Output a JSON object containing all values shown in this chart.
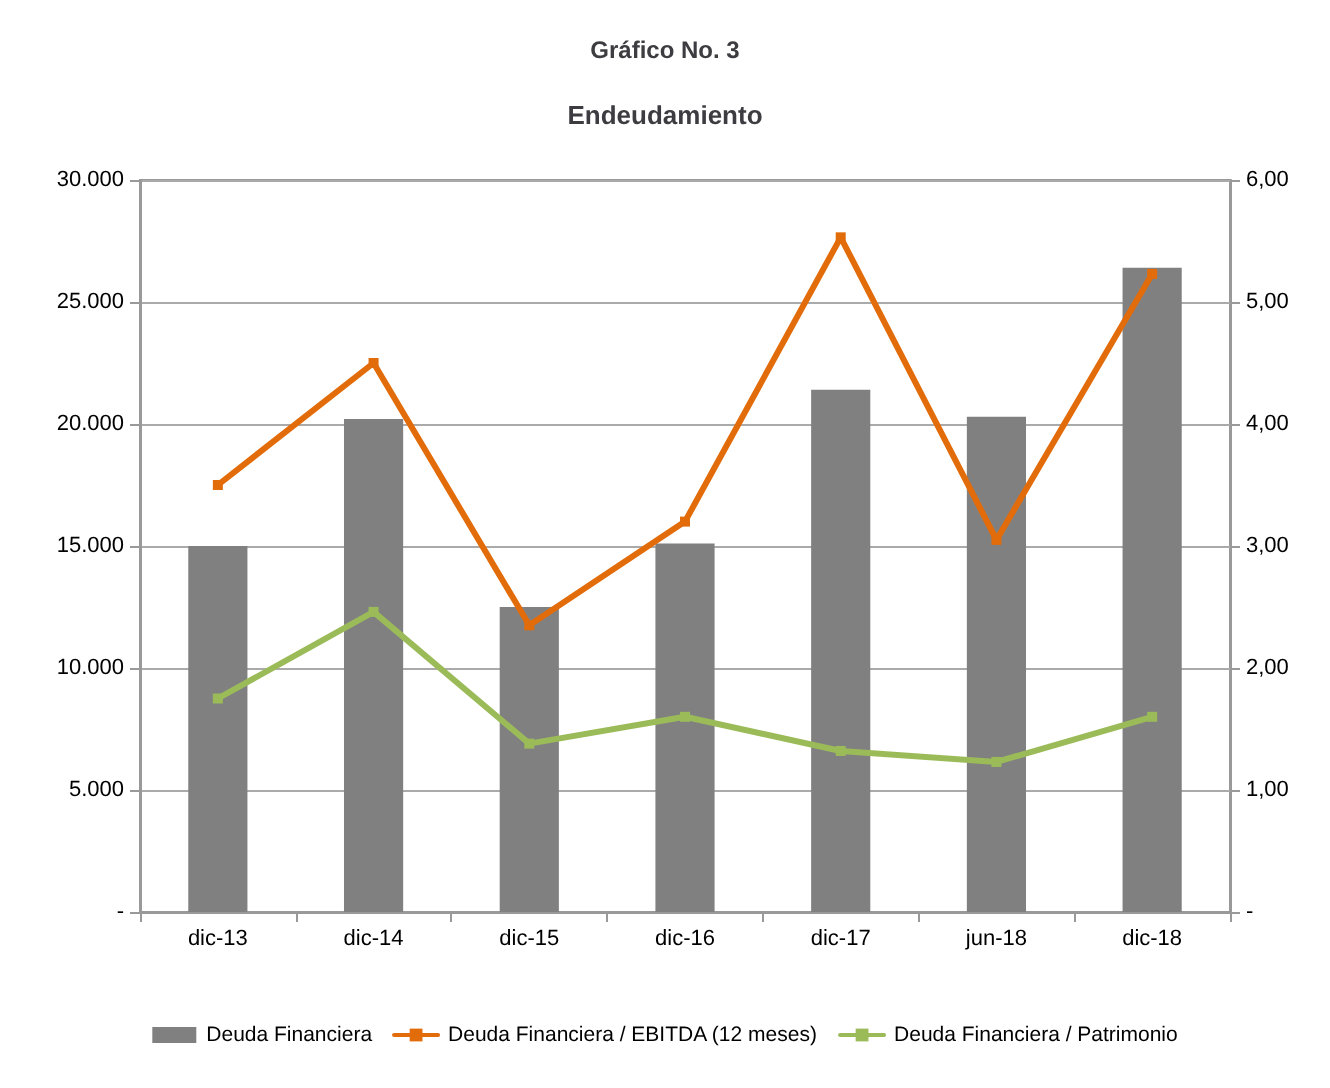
{
  "chart_data": {
    "type": "bar",
    "title": "Gráfico No. 3",
    "subtitle": "Endeudamiento",
    "categories": [
      "dic-13",
      "dic-14",
      "dic-15",
      "dic-16",
      "dic-17",
      "jun-18",
      "dic-18"
    ],
    "series": [
      {
        "name": "Deuda Financiera",
        "color": "#808080",
        "values": [
          15000,
          20200,
          12500,
          15100,
          21400,
          20300,
          26400
        ]
      },
      {
        "name": "Deuda Financiera / EBITDA (12 meses)",
        "type": "line",
        "axis": "y2",
        "color": "#e36c0a",
        "values": [
          3.5,
          4.5,
          2.35,
          3.2,
          5.53,
          3.05,
          5.23
        ]
      },
      {
        "name": "Deuda Financiera / Patrimonio",
        "type": "line",
        "axis": "y2",
        "color": "#9bbb59",
        "values": [
          1.75,
          2.46,
          1.38,
          1.6,
          1.32,
          1.23,
          1.6
        ]
      }
    ],
    "ylim": [
      0,
      30000
    ],
    "yticks": [
      {
        "value": 0,
        "label": "-"
      },
      {
        "value": 5000,
        "label": "5.000"
      },
      {
        "value": 10000,
        "label": "10.000"
      },
      {
        "value": 15000,
        "label": "15.000"
      },
      {
        "value": 20000,
        "label": "20.000"
      },
      {
        "value": 25000,
        "label": "25.000"
      },
      {
        "value": 30000,
        "label": "30.000"
      }
    ],
    "y2lim": [
      0,
      6
    ],
    "y2ticks": [
      {
        "value": 0,
        "label": "-"
      },
      {
        "value": 1,
        "label": "1,00"
      },
      {
        "value": 2,
        "label": "2,00"
      },
      {
        "value": 3,
        "label": "3,00"
      },
      {
        "value": 4,
        "label": "4,00"
      },
      {
        "value": 5,
        "label": "5,00"
      },
      {
        "value": 6,
        "label": "6,00"
      }
    ],
    "grid": "y",
    "legend": "bottom",
    "marker": "square",
    "line_style": "solid"
  }
}
